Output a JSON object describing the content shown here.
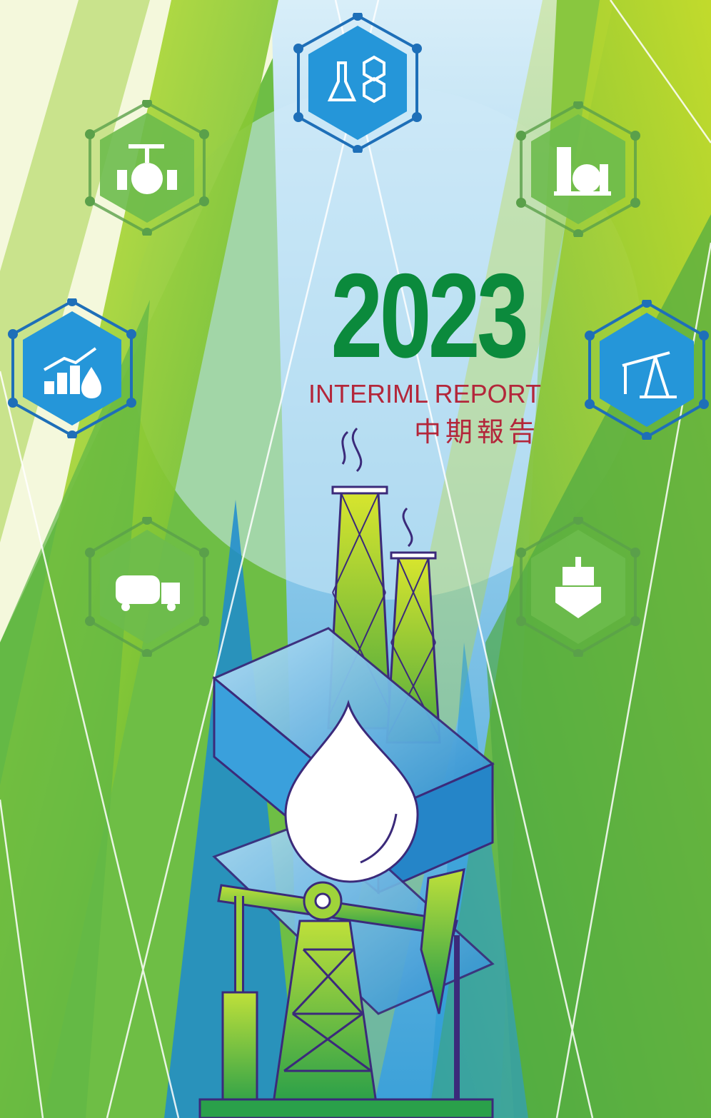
{
  "report": {
    "year": "2023",
    "title_en": "INTERIML REPORT",
    "title_zh": "中期報告"
  },
  "colors": {
    "year": "#0b8a3c",
    "subtitle": "#b3263a",
    "green": "#7cc242",
    "lime": "#c8dc2a",
    "blue": "#2a9ad8",
    "sky": "#9bd3f0"
  },
  "icons": [
    {
      "name": "chemistry-flask-icon",
      "style": "blue"
    },
    {
      "name": "pipeline-valve-icon",
      "style": "green"
    },
    {
      "name": "refinery-storage-icon",
      "style": "green"
    },
    {
      "name": "oil-price-growth-icon",
      "style": "blue"
    },
    {
      "name": "oil-pumpjack-icon",
      "style": "blue"
    },
    {
      "name": "fuel-tanker-truck-icon",
      "style": "green"
    },
    {
      "name": "oil-tanker-ship-icon",
      "style": "green"
    }
  ]
}
